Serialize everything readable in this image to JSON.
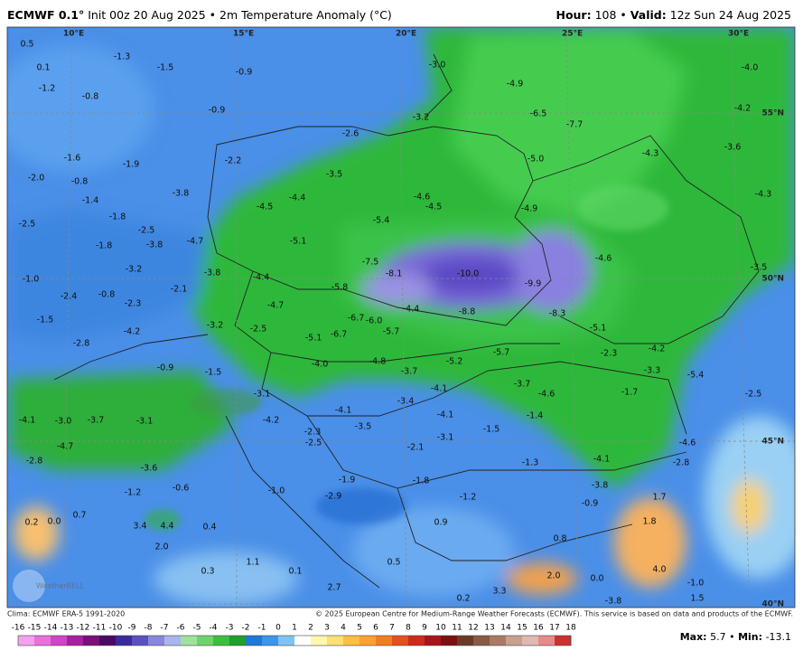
{
  "header": {
    "model": "ECMWF 0.1°",
    "info": "Init 00z 20 Aug 2025 • 2m Temperature Anomaly (°C)",
    "hour_label": "Hour:",
    "hour": "108 •",
    "valid_label": "Valid:",
    "valid": "12z Sun 24 Aug 2025"
  },
  "map": {
    "grid_labels": [
      "10°E",
      "15°E",
      "20°E",
      "25°E",
      "30°E",
      "55°N",
      "50°N",
      "45°N",
      "40°N"
    ],
    "watermark": "WeatherBELL",
    "labels": [
      "0.5",
      "0.1",
      "-1.3",
      "-1.5",
      "-0.9",
      "-0.9",
      "-0.8",
      "-1.2",
      "-3.0",
      "-4.9",
      "-3.2",
      "-6.5",
      "-7.7",
      "-4.0",
      "-4.2",
      "-3.6",
      "-4.3",
      "-4.3",
      "-2.6",
      "-2.2",
      "-3.5",
      "-5.0",
      "-4.6",
      "-4.5",
      "-4.9",
      "-4.4",
      "-4.5",
      "-5.4",
      "-5.1",
      "-3.8",
      "-1.9",
      "-1.8",
      "-2.5",
      "-3.8",
      "-4.7",
      "-1.8",
      "-2.5",
      "-3.2",
      "-3.8",
      "-4.4",
      "-7.5",
      "-8.1",
      "-10.0",
      "-9.9",
      "-4.6",
      "-5.8",
      "-4.7",
      "-8.8",
      "-8.3",
      "-6.7",
      "-6.0",
      "-4.4",
      "-6.7",
      "-5.7",
      "-5.1",
      "-1.0",
      "-2.4",
      "-0.8",
      "-2.3",
      "-1.5",
      "-2.1",
      "-3.2",
      "-2.5",
      "-4.2",
      "-2.8",
      "-5.1",
      "-2.3",
      "-4.2",
      "-5.7",
      "-5.2",
      "-4.8",
      "-4.0",
      "-3.7",
      "-3.3",
      "-3.7",
      "-4.6",
      "-1.7",
      "-4.1",
      "-3.4",
      "-4.1",
      "-4.1",
      "-1.5",
      "-1.4",
      "-3.5",
      "-2.3",
      "-4.2",
      "-3.1",
      "-0.9",
      "-1.5",
      "-3.1",
      "-4.1",
      "-3.0",
      "-3.7",
      "-4.7",
      "-3.6",
      "-2.8",
      "-2.5",
      "-2.1",
      "-3.1",
      "-1.3",
      "-4.1",
      "-2.8",
      "-4.6",
      "-3.8",
      "-0.9",
      "-1.8",
      "-1.9",
      "-2.9",
      "-1.0",
      "-1.2",
      "1.7",
      "1.8",
      "0.8",
      "4.0",
      "2.0",
      "0.0",
      "-1.0",
      "1.5",
      "-1.2",
      "-0.6",
      "0.2",
      "0.0",
      "0.7",
      "3.4",
      "4.4",
      "0.4",
      "2.0",
      "0.3",
      "1.1",
      "0.1",
      "2.7",
      "0.5",
      "0.9",
      "0.2",
      "3.3",
      "-3.8",
      "-1.6",
      "-2.0",
      "-0.8",
      "-1.4",
      "-3.5",
      "-5.4",
      "-2.5"
    ]
  },
  "footer": {
    "clima": "Clima: ECMWF ERA-5 1991-2020",
    "copyright": "© 2025 European Centre for Medium-Range Weather Forecasts (ECMWF). This service is based on data and products of the ECMWF.",
    "max_label": "Max:",
    "max": "5.7 •",
    "min_label": "Min:",
    "min": "-13.1"
  },
  "colorbar": {
    "ticks": [
      -16,
      -15,
      -14,
      -13,
      -12,
      -11,
      -10,
      -9,
      -8,
      -7,
      -6,
      -5,
      -4,
      -3,
      -2,
      -1,
      0,
      1,
      2,
      3,
      4,
      5,
      6,
      7,
      8,
      9,
      10,
      11,
      12,
      13,
      14,
      15,
      16,
      17,
      18
    ],
    "colors": [
      "#f3a0ee",
      "#e870dc",
      "#cf45c4",
      "#a8209e",
      "#7a0f7a",
      "#4b0a62",
      "#3a2a9a",
      "#5a50c0",
      "#8a86dc",
      "#a9b6ee",
      "#9ee39a",
      "#6fd26a",
      "#3fbd3f",
      "#1f9f2c",
      "#1e78d8",
      "#3a95ec",
      "#7fc3f4",
      "#ffffff",
      "#fff7b0",
      "#ffe070",
      "#ffc040",
      "#ffa030",
      "#f47c20",
      "#e45020",
      "#d0281c",
      "#a8141a",
      "#7a1010",
      "#6a3a28",
      "#8a5a44",
      "#aa7a66",
      "#c8a090",
      "#e0b8b0",
      "#e88a8a",
      "#cc3030"
    ]
  }
}
